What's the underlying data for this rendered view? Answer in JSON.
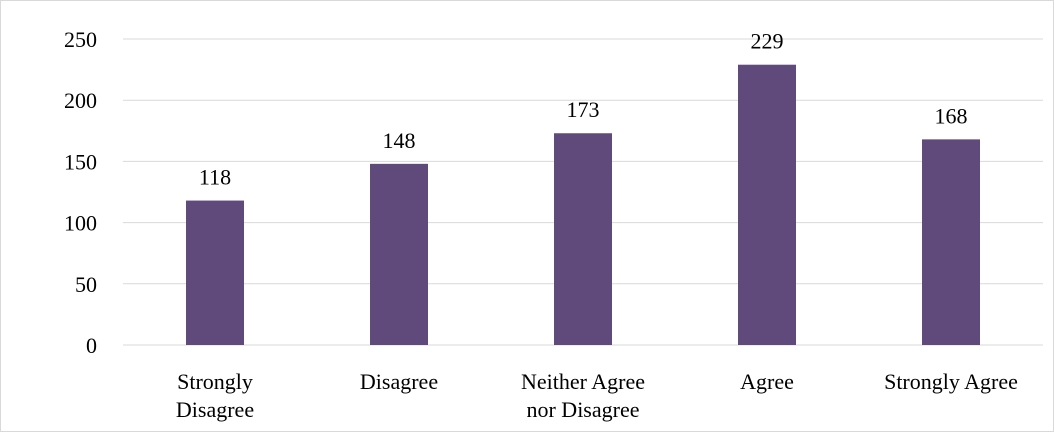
{
  "chart_data": {
    "type": "bar",
    "categories": [
      [
        "Strongly",
        "Disagree"
      ],
      [
        "Disagree"
      ],
      [
        "Neither Agree",
        "nor Disagree"
      ],
      [
        "Agree"
      ],
      [
        "Strongly Agree"
      ]
    ],
    "values": [
      118,
      148,
      173,
      229,
      168
    ],
    "data_labels": [
      "118",
      "148",
      "173",
      "229",
      "168"
    ],
    "y_ticks": [
      "0",
      "50",
      "100",
      "150",
      "200",
      "250"
    ],
    "ylim": [
      0,
      250
    ],
    "grid": true,
    "legend": "none",
    "bar_color": "#604a7b"
  }
}
